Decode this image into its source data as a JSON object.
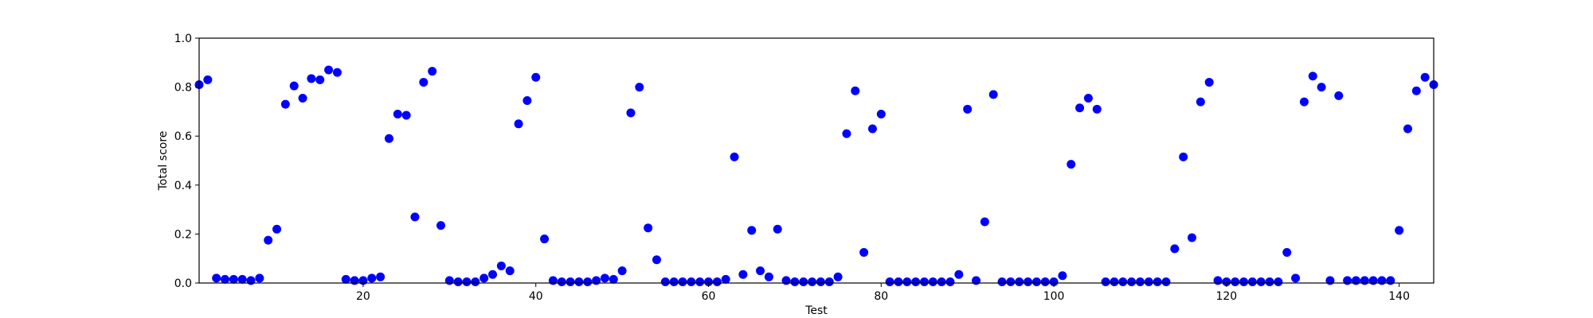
{
  "chart_data": {
    "type": "scatter",
    "title": "",
    "xlabel": "Test",
    "ylabel": "Total score",
    "xlim": [
      1,
      144
    ],
    "ylim": [
      0,
      1.0
    ],
    "xticks": [
      20,
      40,
      60,
      80,
      100,
      120,
      140
    ],
    "yticks": [
      0.0,
      0.2,
      0.4,
      0.6,
      0.8,
      1.0
    ],
    "xtick_labels": [
      "20",
      "40",
      "60",
      "80",
      "100",
      "120",
      "140"
    ],
    "ytick_labels": [
      "0.0",
      "0.2",
      "0.4",
      "0.6",
      "0.8",
      "1.0"
    ],
    "grid": false,
    "marker_color": "#0000ff",
    "series": [
      {
        "x": [
          1,
          2,
          3,
          4,
          5,
          6,
          7,
          8,
          9,
          10,
          11,
          12,
          13,
          14,
          15,
          16,
          17,
          18,
          19,
          20,
          21,
          22,
          23,
          24,
          25,
          26,
          27,
          28,
          29,
          30,
          31,
          32,
          33,
          34,
          35,
          36,
          37,
          38,
          39,
          40,
          41,
          42,
          43,
          44,
          45,
          46,
          47,
          48,
          49,
          50,
          51,
          52,
          53,
          54,
          55,
          56,
          57,
          58,
          59,
          60,
          61,
          62,
          63,
          64,
          65,
          66,
          67,
          68,
          69,
          70,
          71,
          72,
          73,
          74,
          75,
          76,
          77,
          78,
          79,
          80,
          81,
          82,
          83,
          84,
          85,
          86,
          87,
          88,
          89,
          90,
          91,
          92,
          93,
          94,
          95,
          96,
          97,
          98,
          99,
          100,
          101,
          102,
          103,
          104,
          105,
          106,
          107,
          108,
          109,
          110,
          111,
          112,
          113,
          114,
          115,
          116,
          117,
          118,
          119,
          120,
          121,
          122,
          123,
          124,
          125,
          126,
          127,
          128,
          129,
          130,
          131,
          132,
          133,
          134,
          135,
          136,
          137,
          138,
          139,
          140,
          141,
          142,
          143,
          144
        ],
        "y": [
          0.81,
          0.83,
          0.02,
          0.015,
          0.015,
          0.015,
          0.01,
          0.02,
          0.175,
          0.22,
          0.73,
          0.805,
          0.755,
          0.835,
          0.83,
          0.87,
          0.86,
          0.015,
          0.01,
          0.01,
          0.02,
          0.025,
          0.59,
          0.69,
          0.685,
          0.27,
          0.82,
          0.865,
          0.235,
          0.01,
          0.005,
          0.005,
          0.005,
          0.02,
          0.035,
          0.07,
          0.05,
          0.65,
          0.745,
          0.84,
          0.18,
          0.01,
          0.005,
          0.005,
          0.005,
          0.005,
          0.01,
          0.02,
          0.015,
          0.05,
          0.695,
          0.8,
          0.225,
          0.095,
          0.005,
          0.005,
          0.005,
          0.005,
          0.005,
          0.005,
          0.005,
          0.015,
          0.515,
          0.035,
          0.215,
          0.05,
          0.025,
          0.22,
          0.01,
          0.005,
          0.005,
          0.005,
          0.005,
          0.005,
          0.025,
          0.61,
          0.785,
          0.125,
          0.63,
          0.69,
          0.005,
          0.005,
          0.005,
          0.005,
          0.005,
          0.005,
          0.005,
          0.005,
          0.035,
          0.71,
          0.01,
          0.25,
          0.77,
          0.005,
          0.005,
          0.005,
          0.005,
          0.005,
          0.005,
          0.005,
          0.03,
          0.485,
          0.715,
          0.755,
          0.71,
          0.005,
          0.005,
          0.005,
          0.005,
          0.005,
          0.005,
          0.005,
          0.005,
          0.14,
          0.515,
          0.185,
          0.74,
          0.82,
          0.01,
          0.005,
          0.005,
          0.005,
          0.005,
          0.005,
          0.005,
          0.005,
          0.125,
          0.02,
          0.74,
          0.845,
          0.8,
          0.01,
          0.765,
          0.01,
          0.01,
          0.01,
          0.01,
          0.01,
          0.01,
          0.215,
          0.63,
          0.785,
          0.84,
          0.81
        ]
      }
    ]
  }
}
